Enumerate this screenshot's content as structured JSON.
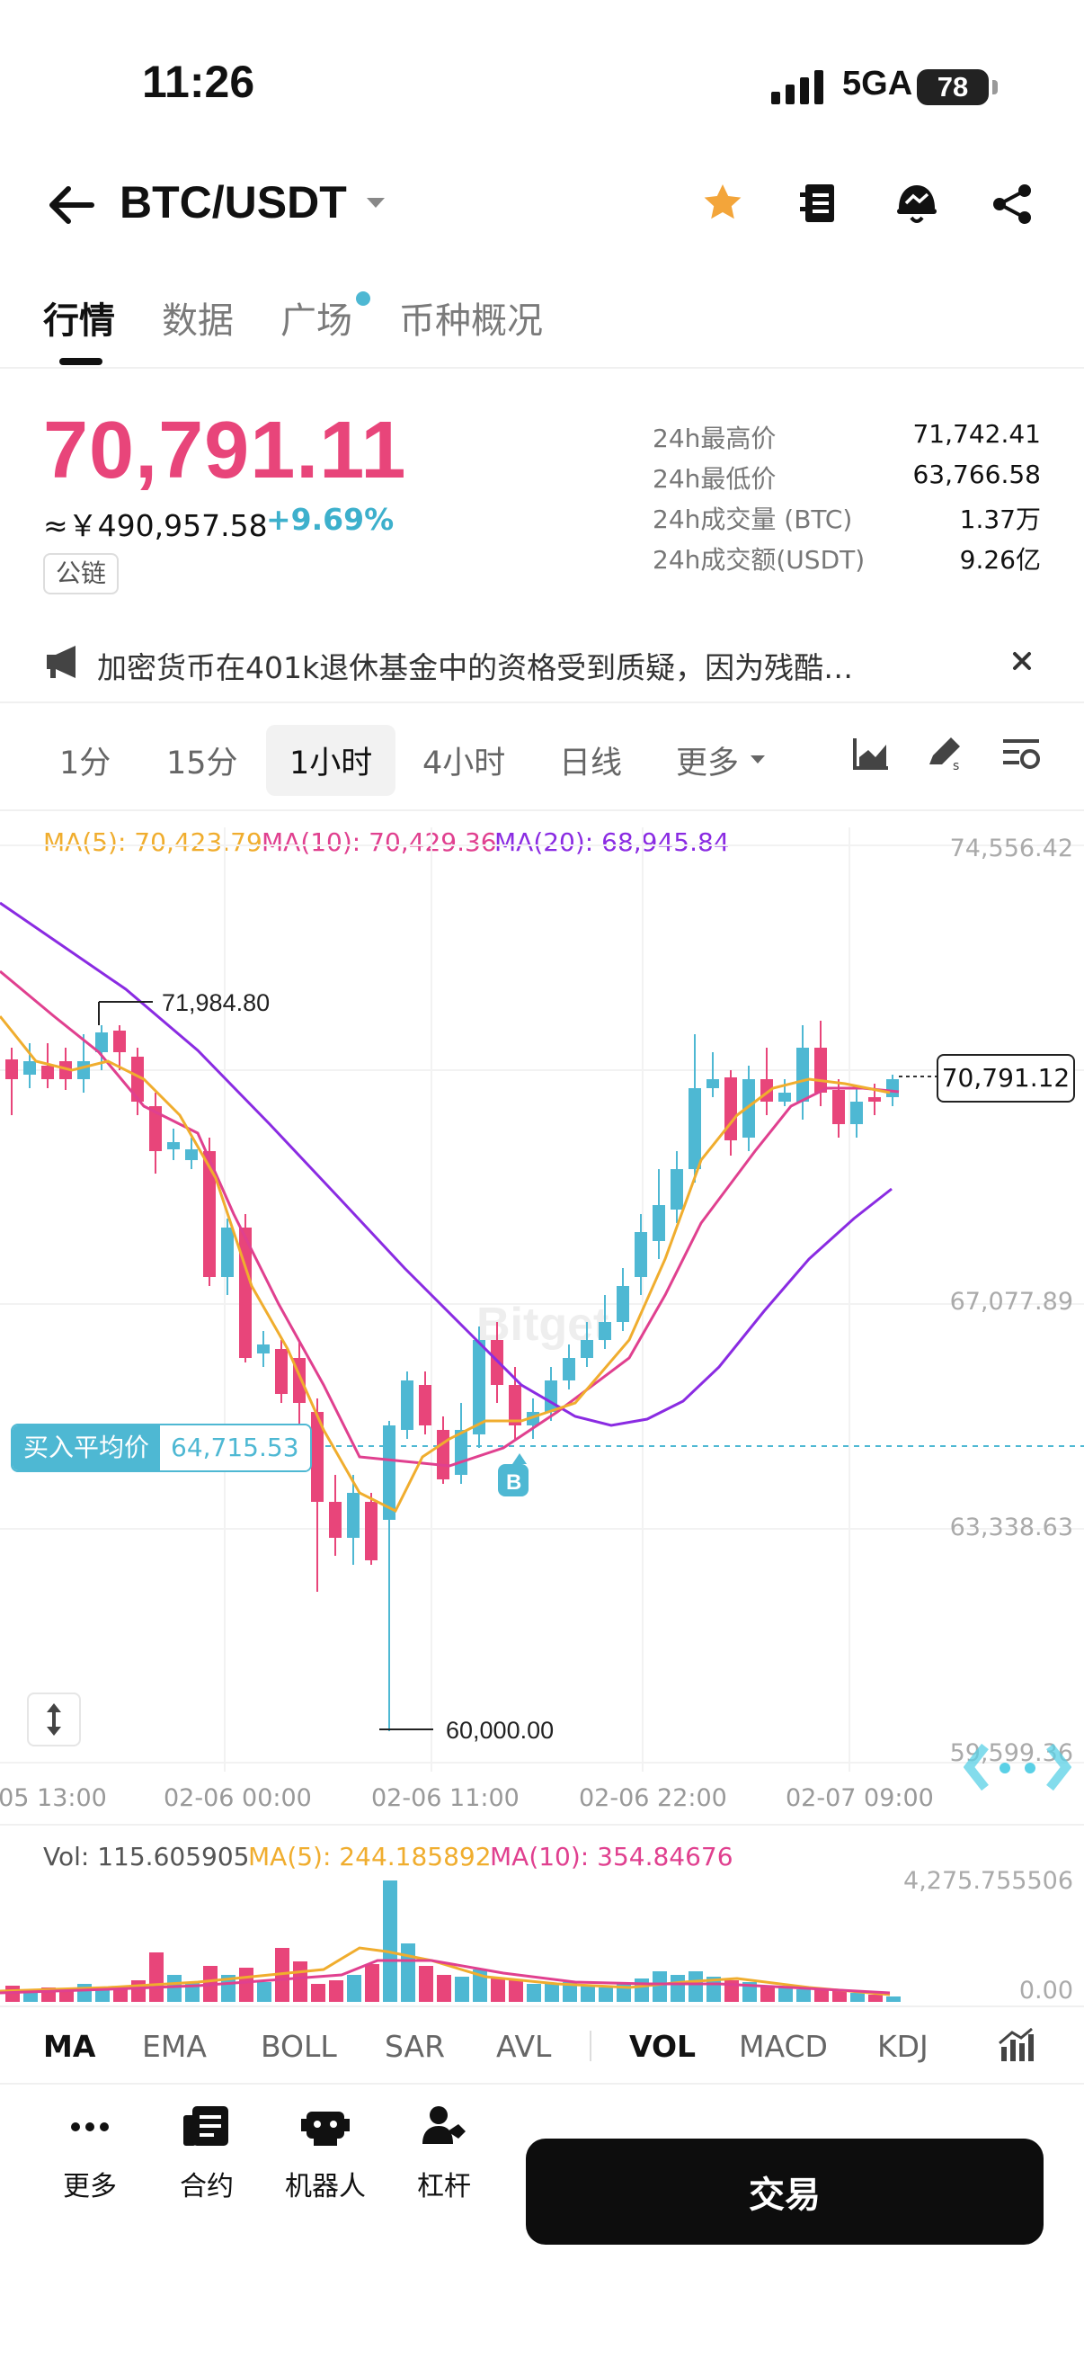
{
  "status": {
    "time": "11:26",
    "network": "5GA",
    "battery": "78"
  },
  "header": {
    "pair": "BTC/USDT"
  },
  "tabs": [
    {
      "label": "行情",
      "active": true
    },
    {
      "label": "数据"
    },
    {
      "label": "广场",
      "dot": true
    },
    {
      "label": "币种概况"
    }
  ],
  "ticker": {
    "price": "70,791.11",
    "cny": "≈￥490,957.58",
    "change": "+9.69%",
    "chip": "公链",
    "stats": [
      {
        "label": "24h最高价",
        "value": "71,742.41"
      },
      {
        "label": "24h最低价",
        "value": "63,766.58"
      },
      {
        "label": "24h成交量 (BTC)",
        "value": "1.37万"
      },
      {
        "label": "24h成交额(USDT)",
        "value": "9.26亿"
      }
    ]
  },
  "news": {
    "text": "加密货币在401k退休基金中的资格受到质疑，因为残酷…"
  },
  "intervals": {
    "items": [
      "1分",
      "15分",
      "1小时",
      "4小时",
      "日线"
    ],
    "active": "1小时",
    "more": "更多"
  },
  "chart": {
    "ma_legend": {
      "ma5": "MA(5): 70,423.79",
      "ma10": "MA(10): 70,429.36",
      "ma20": "MA(20): 68,945.84"
    },
    "y_ticks": [
      "74,556.42",
      "67,077.89",
      "63,338.63",
      "59,599.36"
    ],
    "x_ticks": [
      "02-05 13:00",
      "02-06 00:00",
      "02-06 11:00",
      "02-06 22:00",
      "02-07 09:00"
    ],
    "high_label": "71,984.80",
    "low_label": "60,000.00",
    "current_price_tag": "70,791.12",
    "buy_avg": {
      "label": "买入平均价",
      "value": "64,715.53"
    },
    "buy_marker": "B",
    "watermark": "Bitget",
    "colors": {
      "up": "#4eb8d3",
      "down": "#e8457a",
      "ma5": "#f0ad2e",
      "ma10": "#e0408f",
      "ma20": "#8a2be2"
    }
  },
  "volume": {
    "vol": "Vol: 115.605905",
    "ma5": "MA(5): 244.185892",
    "ma10": "MA(10): 354.84676",
    "y_ticks": [
      "4,275.755506",
      "0.00"
    ]
  },
  "indicators": {
    "items": [
      "MA",
      "EMA",
      "BOLL",
      "SAR",
      "AVL",
      "VOL",
      "MACD",
      "KDJ"
    ],
    "active": [
      "MA",
      "VOL"
    ]
  },
  "bottom_nav": [
    {
      "label": "更多",
      "icon": "more-icon"
    },
    {
      "label": "合约",
      "icon": "contract-icon"
    },
    {
      "label": "机器人",
      "icon": "robot-icon"
    },
    {
      "label": "杠杆",
      "icon": "leverage-icon"
    }
  ],
  "trade_button": "交易"
}
